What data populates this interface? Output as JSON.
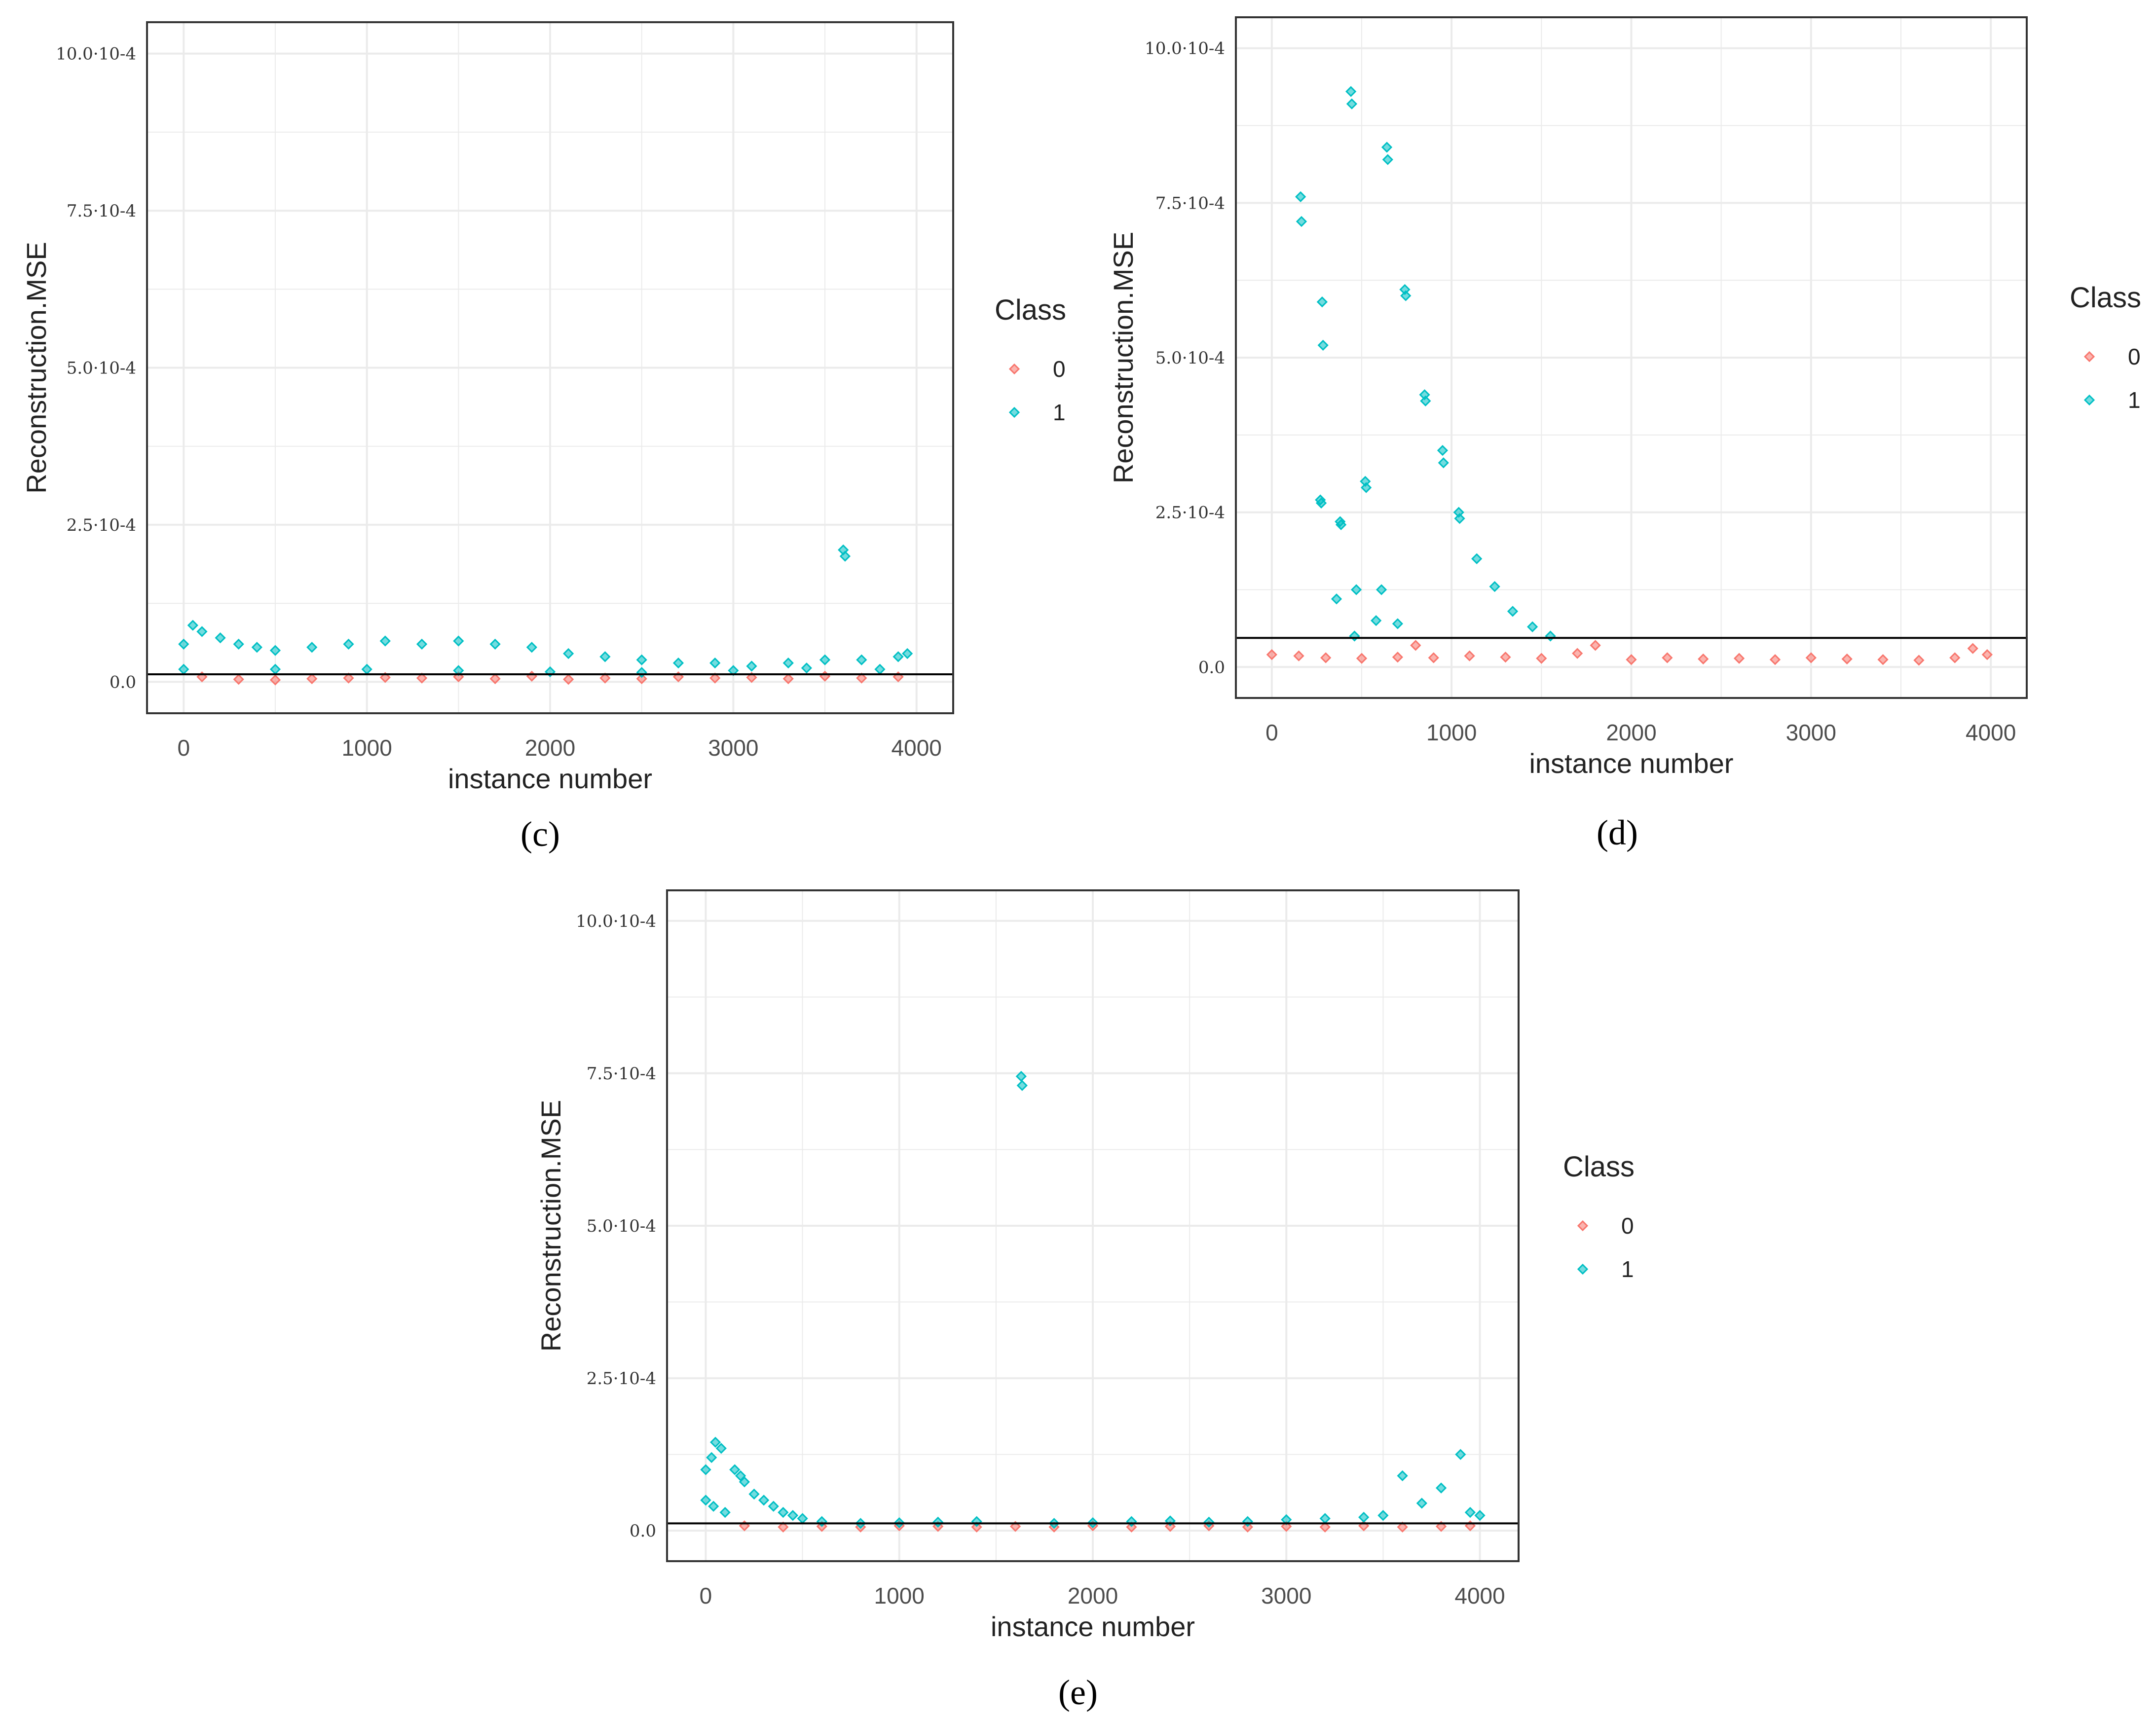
{
  "colors": {
    "class0": "#F8766D",
    "class1": "#00BFC4",
    "grid": "#ebebeb",
    "frame": "#333333",
    "threshold": "#000000"
  },
  "legend": {
    "title": "Class",
    "labels": [
      "0",
      "1"
    ]
  },
  "chart_data": [
    {
      "type": "scatter",
      "panel_label": "(c)",
      "xlabel": "instance number",
      "ylabel": "Reconstruction.MSE",
      "xlim": [
        -200,
        4200
      ],
      "ylim": [
        -5e-05,
        0.00105
      ],
      "x_ticks": [
        0,
        1000,
        2000,
        3000,
        4000
      ],
      "x_tick_labels": [
        "0",
        "1000",
        "2000",
        "3000",
        "4000"
      ],
      "y_ticks": [
        0,
        0.00025,
        0.0005,
        0.00075,
        0.001
      ],
      "y_tick_labels": [
        "0.0",
        "2.5·10-4",
        "5.0·10-4",
        "7.5·10-4",
        "10.0·10-4"
      ],
      "threshold": 1.2e-05,
      "series": [
        {
          "name": "0",
          "points": [
            [
              100,
              8e-06
            ],
            [
              300,
              4e-06
            ],
            [
              500,
              3e-06
            ],
            [
              700,
              5e-06
            ],
            [
              900,
              6e-06
            ],
            [
              1100,
              7e-06
            ],
            [
              1300,
              6e-06
            ],
            [
              1500,
              8e-06
            ],
            [
              1700,
              5e-06
            ],
            [
              1900,
              9e-06
            ],
            [
              2100,
              4e-06
            ],
            [
              2300,
              6e-06
            ],
            [
              2500,
              5e-06
            ],
            [
              2700,
              8e-06
            ],
            [
              2900,
              6e-06
            ],
            [
              3100,
              7e-06
            ],
            [
              3300,
              5e-06
            ],
            [
              3500,
              9e-06
            ],
            [
              3700,
              6e-06
            ],
            [
              3900,
              8e-06
            ]
          ]
        },
        {
          "name": "1",
          "points": [
            [
              0,
              6e-05
            ],
            [
              50,
              9e-05
            ],
            [
              100,
              8e-05
            ],
            [
              200,
              7e-05
            ],
            [
              300,
              6e-05
            ],
            [
              400,
              5.5e-05
            ],
            [
              500,
              5e-05
            ],
            [
              700,
              5.5e-05
            ],
            [
              900,
              6e-05
            ],
            [
              1100,
              6.5e-05
            ],
            [
              1300,
              6e-05
            ],
            [
              1500,
              6.5e-05
            ],
            [
              1700,
              6e-05
            ],
            [
              1900,
              5.5e-05
            ],
            [
              2100,
              4.5e-05
            ],
            [
              2300,
              4e-05
            ],
            [
              2500,
              3.5e-05
            ],
            [
              2700,
              3e-05
            ],
            [
              2900,
              3e-05
            ],
            [
              3100,
              2.5e-05
            ],
            [
              3300,
              3e-05
            ],
            [
              3500,
              3.5e-05
            ],
            [
              3600,
              0.00021
            ],
            [
              3610,
              0.0002
            ],
            [
              3700,
              3.5e-05
            ],
            [
              3900,
              4e-05
            ],
            [
              3950,
              4.5e-05
            ],
            [
              0,
              2e-05
            ],
            [
              500,
              2e-05
            ],
            [
              1000,
              2e-05
            ],
            [
              1500,
              1.8e-05
            ],
            [
              2000,
              1.6e-05
            ],
            [
              2500,
              1.5e-05
            ],
            [
              3000,
              1.8e-05
            ],
            [
              3400,
              2.2e-05
            ],
            [
              3800,
              2e-05
            ]
          ]
        }
      ]
    },
    {
      "type": "scatter",
      "panel_label": "(d)",
      "xlabel": "instance number",
      "ylabel": "Reconstruction.MSE",
      "xlim": [
        -200,
        4200
      ],
      "ylim": [
        -5e-05,
        0.00105
      ],
      "x_ticks": [
        0,
        1000,
        2000,
        3000,
        4000
      ],
      "x_tick_labels": [
        "0",
        "1000",
        "2000",
        "3000",
        "4000"
      ],
      "y_ticks": [
        0,
        0.00025,
        0.0005,
        0.00075,
        0.001
      ],
      "y_tick_labels": [
        "0.0",
        "2.5·10-4",
        "5.0·10-4",
        "7.5·10-4",
        "10.0·10-4"
      ],
      "threshold": 4.7e-05,
      "series": [
        {
          "name": "0",
          "points": [
            [
              0,
              2e-05
            ],
            [
              150,
              1.8e-05
            ],
            [
              300,
              1.5e-05
            ],
            [
              500,
              1.4e-05
            ],
            [
              700,
              1.6e-05
            ],
            [
              800,
              3.5e-05
            ],
            [
              900,
              1.5e-05
            ],
            [
              1100,
              1.8e-05
            ],
            [
              1300,
              1.6e-05
            ],
            [
              1500,
              1.4e-05
            ],
            [
              1700,
              2.2e-05
            ],
            [
              1800,
              3.5e-05
            ],
            [
              2000,
              1.2e-05
            ],
            [
              2200,
              1.5e-05
            ],
            [
              2400,
              1.3e-05
            ],
            [
              2600,
              1.4e-05
            ],
            [
              2800,
              1.2e-05
            ],
            [
              3000,
              1.5e-05
            ],
            [
              3200,
              1.3e-05
            ],
            [
              3400,
              1.2e-05
            ],
            [
              3600,
              1.1e-05
            ],
            [
              3800,
              1.5e-05
            ],
            [
              3900,
              3e-05
            ],
            [
              3980,
              2e-05
            ]
          ]
        },
        {
          "name": "1",
          "points": [
            [
              160,
              0.00076
            ],
            [
              165,
              0.00072
            ],
            [
              280,
              0.00059
            ],
            [
              285,
              0.00052
            ],
            [
              270,
              0.00027
            ],
            [
              275,
              0.000265
            ],
            [
              380,
              0.000235
            ],
            [
              385,
              0.00023
            ],
            [
              360,
              0.00011
            ],
            [
              440,
              0.00093
            ],
            [
              445,
              0.00091
            ],
            [
              470,
              0.000125
            ],
            [
              460,
              5e-05
            ],
            [
              520,
              0.0003
            ],
            [
              525,
              0.00029
            ],
            [
              580,
              7.5e-05
            ],
            [
              610,
              0.000125
            ],
            [
              640,
              0.00084
            ],
            [
              645,
              0.00082
            ],
            [
              700,
              7e-05
            ],
            [
              740,
              0.00061
            ],
            [
              745,
              0.0006
            ],
            [
              850,
              0.00044
            ],
            [
              855,
              0.00043
            ],
            [
              950,
              0.00035
            ],
            [
              955,
              0.00033
            ],
            [
              1040,
              0.00025
            ],
            [
              1045,
              0.00024
            ],
            [
              1140,
              0.000175
            ],
            [
              1240,
              0.00013
            ],
            [
              1340,
              9e-05
            ],
            [
              1450,
              6.5e-05
            ],
            [
              1550,
              5e-05
            ]
          ]
        }
      ]
    },
    {
      "type": "scatter",
      "panel_label": "(e)",
      "xlabel": "instance number",
      "ylabel": "Reconstruction.MSE",
      "xlim": [
        -200,
        4200
      ],
      "ylim": [
        -5e-05,
        0.00105
      ],
      "x_ticks": [
        0,
        1000,
        2000,
        3000,
        4000
      ],
      "x_tick_labels": [
        "0",
        "1000",
        "2000",
        "3000",
        "4000"
      ],
      "y_ticks": [
        0,
        0.00025,
        0.0005,
        0.00075,
        0.001
      ],
      "y_tick_labels": [
        "0.0",
        "2.5·10-4",
        "5.0·10-4",
        "7.5·10-4",
        "10.0·10-4"
      ],
      "threshold": 1.2e-05,
      "series": [
        {
          "name": "0",
          "points": [
            [
              200,
              8e-06
            ],
            [
              400,
              6e-06
            ],
            [
              600,
              7e-06
            ],
            [
              800,
              6e-06
            ],
            [
              1000,
              8e-06
            ],
            [
              1200,
              7e-06
            ],
            [
              1400,
              6e-06
            ],
            [
              1600,
              7e-06
            ],
            [
              1800,
              6e-06
            ],
            [
              2000,
              8e-06
            ],
            [
              2200,
              6e-06
            ],
            [
              2400,
              7e-06
            ],
            [
              2600,
              8e-06
            ],
            [
              2800,
              6e-06
            ],
            [
              3000,
              7e-06
            ],
            [
              3200,
              6e-06
            ],
            [
              3400,
              8e-06
            ],
            [
              3600,
              6e-06
            ],
            [
              3800,
              7e-06
            ],
            [
              3950,
              8e-06
            ]
          ]
        },
        {
          "name": "1",
          "points": [
            [
              0,
              0.0001
            ],
            [
              30,
              0.00012
            ],
            [
              50,
              0.000145
            ],
            [
              80,
              0.000135
            ],
            [
              0,
              5e-05
            ],
            [
              40,
              4e-05
            ],
            [
              100,
              3e-05
            ],
            [
              150,
              0.0001
            ],
            [
              180,
              9e-05
            ],
            [
              200,
              8e-05
            ],
            [
              250,
              6e-05
            ],
            [
              300,
              5e-05
            ],
            [
              350,
              4e-05
            ],
            [
              400,
              3e-05
            ],
            [
              450,
              2.5e-05
            ],
            [
              500,
              2e-05
            ],
            [
              600,
              1.5e-05
            ],
            [
              800,
              1.2e-05
            ],
            [
              1000,
              1.3e-05
            ],
            [
              1200,
              1.4e-05
            ],
            [
              1400,
              1.5e-05
            ],
            [
              1630,
              0.000745
            ],
            [
              1635,
              0.00073
            ],
            [
              1800,
              1.2e-05
            ],
            [
              2000,
              1.3e-05
            ],
            [
              2200,
              1.5e-05
            ],
            [
              2400,
              1.6e-05
            ],
            [
              2600,
              1.4e-05
            ],
            [
              2800,
              1.5e-05
            ],
            [
              3000,
              1.8e-05
            ],
            [
              3200,
              2e-05
            ],
            [
              3400,
              2.2e-05
            ],
            [
              3500,
              2.5e-05
            ],
            [
              3600,
              9e-05
            ],
            [
              3700,
              4.5e-05
            ],
            [
              3800,
              7e-05
            ],
            [
              3900,
              0.000125
            ],
            [
              3950,
              3e-05
            ],
            [
              4000,
              2.5e-05
            ]
          ]
        }
      ]
    }
  ]
}
